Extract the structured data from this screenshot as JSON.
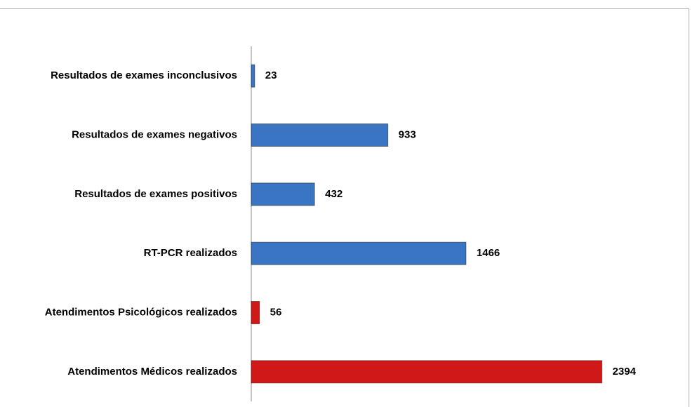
{
  "chart_data": {
    "type": "barh",
    "categories": [
      "Resultados de exames inconclusivos",
      "Resultados de exames negativos",
      "Resultados de exames positivos",
      "RT-PCR realizados",
      "Atendimentos Psicológicos realizados",
      "Atendimentos Médicos realizados"
    ],
    "values": [
      23,
      933,
      432,
      1466,
      56,
      2394
    ],
    "colors": [
      "#3a75c4",
      "#3a75c4",
      "#3a75c4",
      "#3a75c4",
      "#d01818",
      "#d01818"
    ],
    "xlim": [
      0,
      3000
    ]
  }
}
